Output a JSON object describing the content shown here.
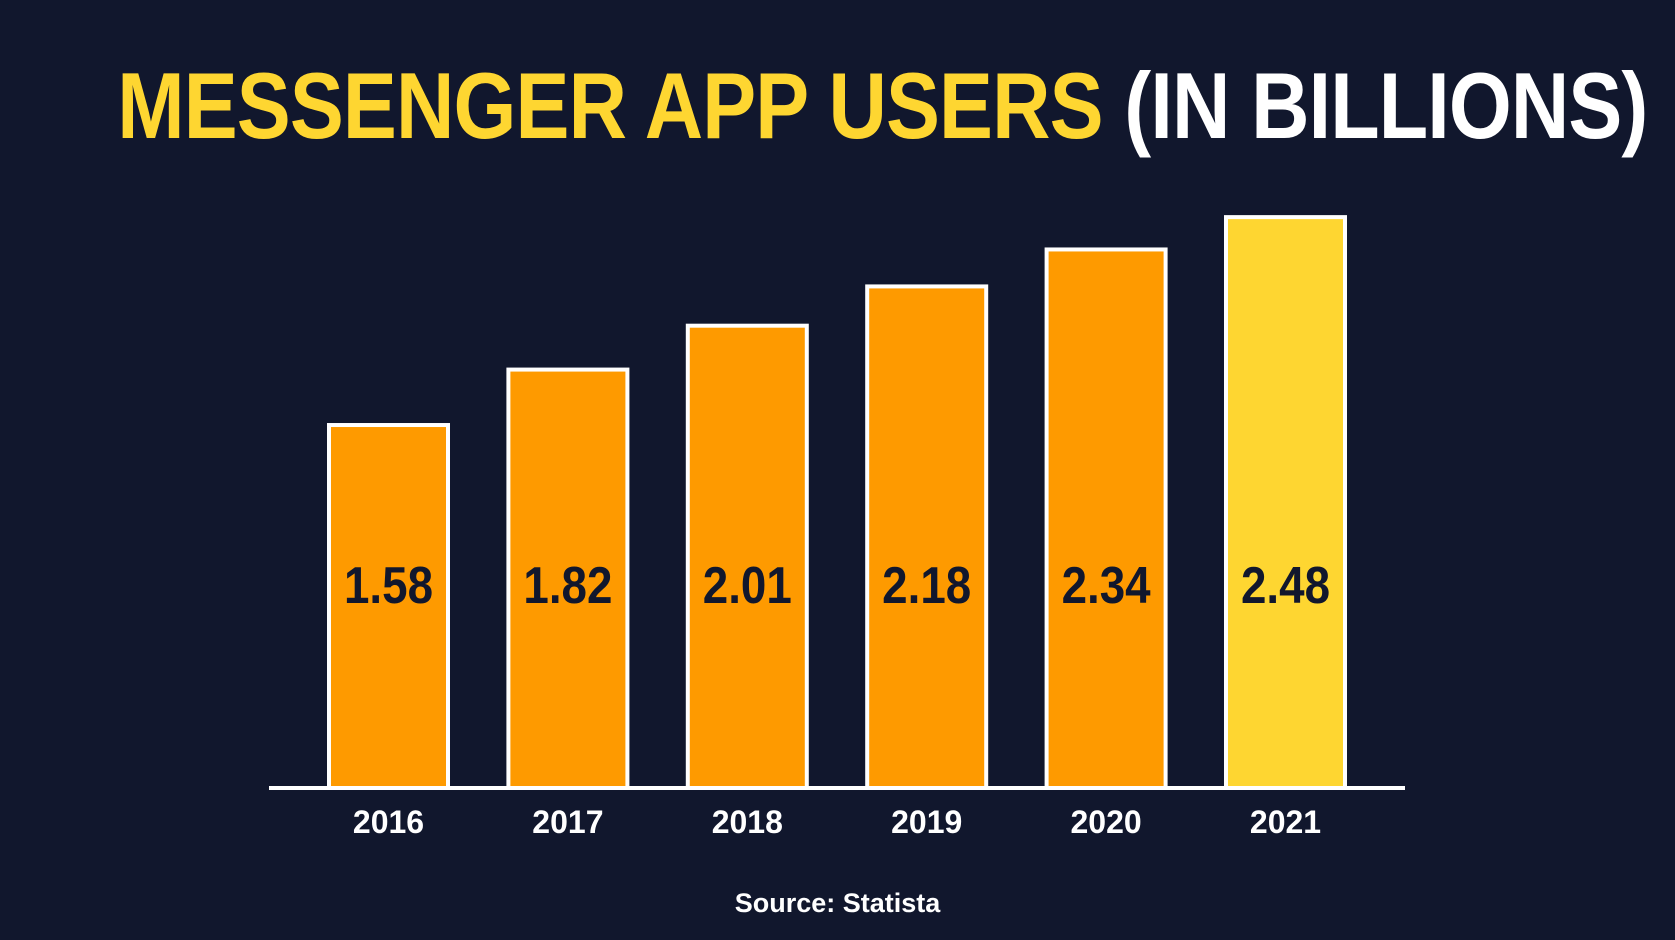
{
  "chart_data": {
    "type": "bar",
    "title_highlight": "MESSENGER APP USERS",
    "title_rest": "(IN BILLIONS)",
    "categories": [
      "2016",
      "2017",
      "2018",
      "2019",
      "2020",
      "2021"
    ],
    "values": [
      1.58,
      1.82,
      2.01,
      2.18,
      2.34,
      2.48
    ],
    "value_labels": [
      "1.58",
      "1.82",
      "2.01",
      "2.18",
      "2.34",
      "2.48"
    ],
    "ylim": [
      0,
      2.5
    ],
    "grid": false,
    "colors": {
      "background": "#11172d",
      "bar": "#fe9a00",
      "highlight_bar": "#fed631",
      "bar_outline": "#ffffff",
      "label": "#11172d",
      "title_highlight": "#fed631"
    },
    "highlight_index": 5,
    "source": "Source: Statista"
  }
}
